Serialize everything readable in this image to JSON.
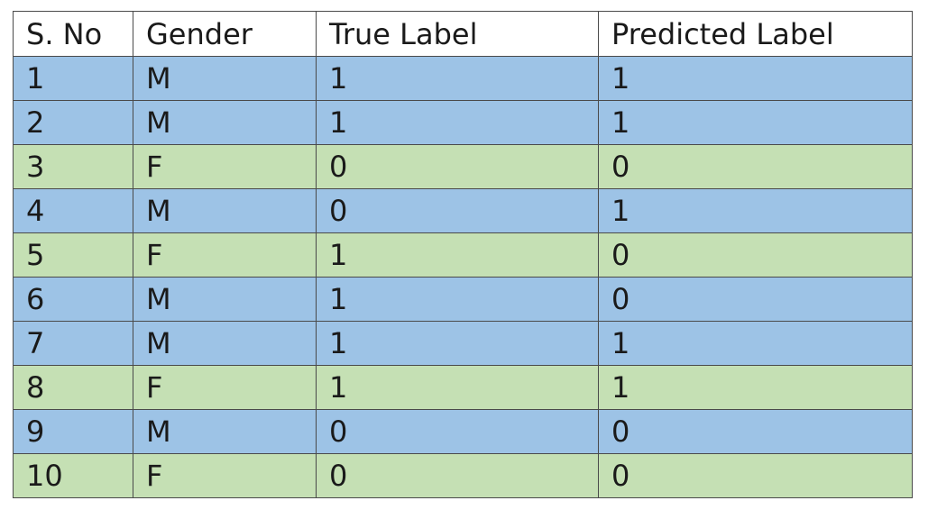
{
  "table": {
    "headers": [
      "S. No",
      "Gender",
      "True Label",
      "Predicted Label"
    ],
    "rows": [
      [
        "1",
        "M",
        "1",
        "1"
      ],
      [
        "2",
        "M",
        "1",
        "1"
      ],
      [
        "3",
        "F",
        "0",
        "0"
      ],
      [
        "4",
        "M",
        "0",
        "1"
      ],
      [
        "5",
        "F",
        "1",
        "0"
      ],
      [
        "6",
        "M",
        "1",
        "0"
      ],
      [
        "7",
        "M",
        "1",
        "1"
      ],
      [
        "8",
        "F",
        "1",
        "1"
      ],
      [
        "9",
        "M",
        "0",
        "0"
      ],
      [
        "10",
        "F",
        "0",
        "0"
      ]
    ]
  },
  "colors": {
    "male_row": "#9dc3e6",
    "female_row": "#c5e0b4",
    "header_row": "#ffffff",
    "border": "#4a4a4a"
  }
}
